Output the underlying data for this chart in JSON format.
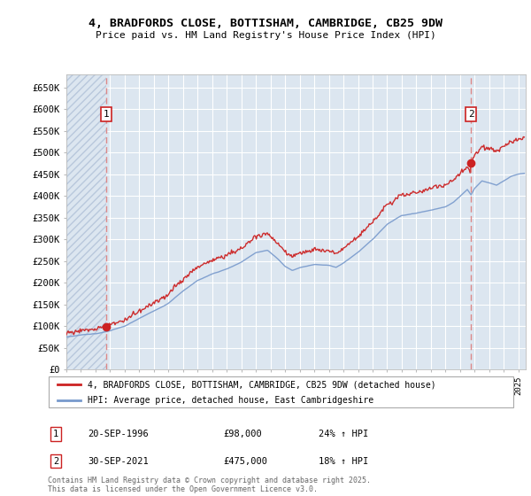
{
  "title_line1": "4, BRADFORDS CLOSE, BOTTISHAM, CAMBRIDGE, CB25 9DW",
  "title_line2": "Price paid vs. HM Land Registry's House Price Index (HPI)",
  "plot_bg_color": "#dce6f0",
  "hatch_color": "#b8c8dc",
  "grid_color": "#ffffff",
  "sale1_date_num": 1996.73,
  "sale1_price": 98000,
  "sale1_label": "20-SEP-1996",
  "sale1_price_str": "£98,000",
  "sale1_hpi_str": "24% ↑ HPI",
  "sale2_date_num": 2021.75,
  "sale2_price": 475000,
  "sale2_label": "30-SEP-2021",
  "sale2_price_str": "£475,000",
  "sale2_hpi_str": "18% ↑ HPI",
  "ylim": [
    0,
    680000
  ],
  "xlim_start": 1994.0,
  "xlim_end": 2025.5,
  "red_line_color": "#cc2222",
  "blue_line_color": "#7799cc",
  "marker_color": "#cc2222",
  "dashed_line_color": "#dd8888",
  "legend_line1": "4, BRADFORDS CLOSE, BOTTISHAM, CAMBRIDGE, CB25 9DW (detached house)",
  "legend_line2": "HPI: Average price, detached house, East Cambridgeshire",
  "footer": "Contains HM Land Registry data © Crown copyright and database right 2025.\nThis data is licensed under the Open Government Licence v3.0.",
  "yticks": [
    0,
    50000,
    100000,
    150000,
    200000,
    250000,
    300000,
    350000,
    400000,
    450000,
    500000,
    550000,
    600000,
    650000
  ],
  "ytick_labels": [
    "£0",
    "£50K",
    "£100K",
    "£150K",
    "£200K",
    "£250K",
    "£300K",
    "£350K",
    "£400K",
    "£450K",
    "£500K",
    "£550K",
    "£600K",
    "£650K"
  ]
}
